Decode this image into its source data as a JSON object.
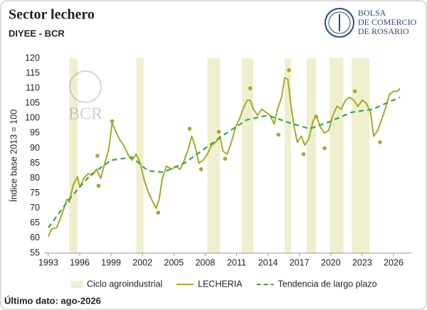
{
  "chart_data": {
    "type": "line",
    "title": "Sector lechero",
    "subtitle": "DIYEE - BCR",
    "ylabel": "Índice base 2013 = 100",
    "footnote": "Último dato: ago-2026",
    "logo": {
      "lines": [
        "BOLSA",
        "DE COMERCIO",
        "DE ROSARIO"
      ],
      "watermark": "BCR"
    },
    "xlim": [
      1992.6,
      2027.7
    ],
    "xticks": [
      1993,
      1996,
      1999,
      2002,
      2005,
      2008,
      2011,
      2014,
      2017,
      2020,
      2023,
      2026
    ],
    "ylim": [
      55,
      120
    ],
    "yticks": [
      55,
      60,
      65,
      70,
      75,
      80,
      85,
      90,
      95,
      100,
      105,
      110,
      115,
      120
    ],
    "legend": "bottom",
    "bands": {
      "name": "Ciclo agroindustrial",
      "color": "#efefcf",
      "ranges": [
        [
          1995.0,
          1995.8
        ],
        [
          2001.4,
          2002.1
        ],
        [
          2008.2,
          2009.4
        ],
        [
          2011.5,
          2012.6
        ],
        [
          2015.6,
          2016.2
        ],
        [
          2017.7,
          2018.6
        ],
        [
          2019.9,
          2021.2
        ],
        [
          2022.0,
          2023.7
        ]
      ]
    },
    "series": [
      {
        "name": "LECHERIA",
        "color": "#a6a928",
        "dash": false,
        "x": [
          1993.0,
          1993.3,
          1993.8,
          1994.3,
          1994.8,
          1995.0,
          1995.4,
          1995.8,
          1996.0,
          1996.4,
          1996.8,
          1997.2,
          1997.6,
          1998.0,
          1998.4,
          1998.8,
          1999.1,
          1999.4,
          1999.8,
          2000.2,
          2000.6,
          2001.0,
          2001.4,
          2001.8,
          2002.2,
          2002.6,
          2003.0,
          2003.3,
          2003.6,
          2003.9,
          2004.3,
          2004.8,
          2005.2,
          2005.6,
          2006.0,
          2006.4,
          2006.7,
          2007.0,
          2007.4,
          2007.8,
          2008.2,
          2008.6,
          2009.0,
          2009.4,
          2009.7,
          2010.1,
          2010.5,
          2010.9,
          2011.3,
          2011.6,
          2012.0,
          2012.3,
          2012.6,
          2013.0,
          2013.4,
          2013.8,
          2014.2,
          2014.6,
          2014.9,
          2015.3,
          2015.6,
          2015.9,
          2016.2,
          2016.5,
          2016.8,
          2017.2,
          2017.5,
          2017.9,
          2018.3,
          2018.6,
          2019.0,
          2019.4,
          2019.8,
          2020.2,
          2020.6,
          2021.0,
          2021.4,
          2021.8,
          2022.2,
          2022.6,
          2023.0,
          2023.4,
          2023.8,
          2024.1,
          2024.5,
          2024.9,
          2025.3,
          2025.6,
          2026.0,
          2026.4,
          2026.6
        ],
        "values": [
          60.5,
          63,
          63.5,
          68,
          73,
          72,
          78,
          80.5,
          77,
          80,
          81.5,
          81,
          83,
          80,
          85,
          90,
          98.5,
          96,
          93,
          91,
          88,
          86,
          88,
          85,
          79,
          75,
          72,
          70,
          73,
          80,
          84,
          83,
          84,
          83,
          86,
          90,
          94,
          91,
          85,
          86,
          88,
          91,
          92,
          94,
          89,
          88,
          92,
          97,
          100,
          103,
          106,
          106,
          103,
          101,
          103,
          102,
          101,
          98,
          103,
          107,
          113.5,
          113,
          104,
          97,
          92,
          94,
          91,
          93,
          99,
          101,
          97,
          95,
          96,
          101,
          104,
          103,
          106,
          107,
          106,
          104,
          106,
          105,
          102,
          94,
          96,
          100,
          104,
          108,
          109,
          109,
          110
        ]
      },
      {
        "name": "Tendencia de largo plazo",
        "color": "#3aa845",
        "dash": true,
        "x": [
          1993,
          1995,
          1997,
          1999,
          2001,
          2002.5,
          2004,
          2006,
          2008,
          2010,
          2012,
          2014,
          2016,
          2018,
          2020,
          2022,
          2024,
          2026.6
        ],
        "values": [
          63.5,
          73,
          81,
          86,
          87,
          82.5,
          82,
          85,
          90,
          95,
          99.5,
          101,
          98.5,
          96.5,
          99,
          102,
          103,
          107
        ]
      }
    ],
    "points": {
      "color": "#a6a928",
      "x": [
        1997.7,
        1997.8,
        1999.1,
        2003.5,
        2006.5,
        2007.6,
        2009.3,
        2009.9,
        2012.3,
        2015.0,
        2016.0,
        2017.4,
        2018.6,
        2019.4,
        2022.3,
        2024.7
      ],
      "values": [
        87.5,
        77.5,
        99,
        68.5,
        96.5,
        83,
        95.5,
        86.5,
        110,
        94.5,
        116,
        88,
        100.5,
        90,
        109,
        92
      ]
    }
  }
}
